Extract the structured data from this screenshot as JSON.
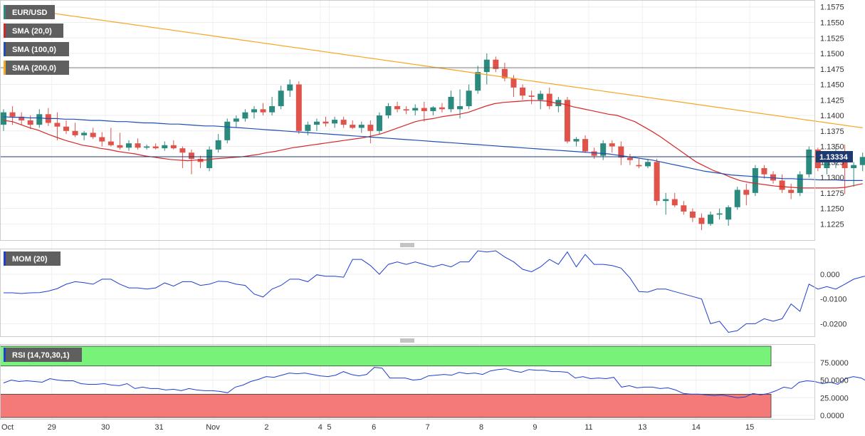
{
  "chart_data": [
    {
      "type": "candlestick",
      "symbol": "EUR/USD",
      "legend": [
        {
          "label": "EUR/USD",
          "color": "#2b8a7e"
        },
        {
          "label": "SMA (20,0)",
          "color": "#d62728"
        },
        {
          "label": "SMA (100,0)",
          "color": "#1f4fb4"
        },
        {
          "label": "SMA (200,0)",
          "color": "#f5a623"
        }
      ],
      "ylim": [
        1.1207,
        1.1577
      ],
      "yticks": [
        "1.1225",
        "1.1250",
        "1.1275",
        "1.1300",
        "1.1325",
        "1.1350",
        "1.1375",
        "1.1400",
        "1.1425",
        "1.1450",
        "1.1475",
        "1.1500",
        "1.1525",
        "1.1550",
        "1.1575"
      ],
      "last_price": "1.13334",
      "horizontal_line": 1.1477,
      "up_color": "#2b8a7e",
      "down_color": "#e0534b",
      "candles": [
        [
          1.1385,
          1.141,
          1.1375,
          1.1405
        ],
        [
          1.1405,
          1.1415,
          1.1385,
          1.1398
        ],
        [
          1.1398,
          1.1405,
          1.1385,
          1.1392
        ],
        [
          1.1392,
          1.14,
          1.1378,
          1.1385
        ],
        [
          1.1385,
          1.141,
          1.138,
          1.1402
        ],
        [
          1.1402,
          1.1412,
          1.1383,
          1.1388
        ],
        [
          1.1388,
          1.1405,
          1.136,
          1.1382
        ],
        [
          1.1382,
          1.1392,
          1.137,
          1.1375
        ],
        [
          1.1375,
          1.1388,
          1.1365,
          1.1368
        ],
        [
          1.1368,
          1.1375,
          1.136,
          1.1372
        ],
        [
          1.1372,
          1.138,
          1.1362,
          1.1365
        ],
        [
          1.1365,
          1.1373,
          1.135,
          1.1358
        ],
        [
          1.1358,
          1.138,
          1.135,
          1.1352
        ],
        [
          1.1352,
          1.1372,
          1.1345,
          1.1348
        ],
        [
          1.1348,
          1.136,
          1.1343,
          1.1355
        ],
        [
          1.1355,
          1.1363,
          1.1345,
          1.1348
        ],
        [
          1.1348,
          1.1353,
          1.1345,
          1.135
        ],
        [
          1.135,
          1.1355,
          1.1345,
          1.1347
        ],
        [
          1.1347,
          1.1358,
          1.1343,
          1.1352
        ],
        [
          1.1352,
          1.136,
          1.1345,
          1.1347
        ],
        [
          1.1347,
          1.135,
          1.1315,
          1.134
        ],
        [
          1.134,
          1.1345,
          1.1305,
          1.133
        ],
        [
          1.133,
          1.1335,
          1.1315,
          1.1325
        ],
        [
          1.1315,
          1.135,
          1.131,
          1.1345
        ],
        [
          1.1345,
          1.137,
          1.134,
          1.136
        ],
        [
          1.136,
          1.1395,
          1.1355,
          1.139
        ],
        [
          1.139,
          1.14,
          1.138,
          1.1395
        ],
        [
          1.1395,
          1.141,
          1.139,
          1.1405
        ],
        [
          1.1405,
          1.1415,
          1.1395,
          1.141
        ],
        [
          1.141,
          1.142,
          1.14,
          1.1405
        ],
        [
          1.1405,
          1.143,
          1.14,
          1.1415
        ],
        [
          1.1415,
          1.1448,
          1.141,
          1.144
        ],
        [
          1.144,
          1.1458,
          1.143,
          1.145
        ],
        [
          1.145,
          1.1455,
          1.137,
          1.1375
        ],
        [
          1.1375,
          1.139,
          1.1368,
          1.1385
        ],
        [
          1.1385,
          1.1395,
          1.1375,
          1.139
        ],
        [
          1.139,
          1.1398,
          1.1382,
          1.1387
        ],
        [
          1.1387,
          1.1398,
          1.138,
          1.1393
        ],
        [
          1.1393,
          1.1398,
          1.138,
          1.1385
        ],
        [
          1.1385,
          1.1392,
          1.1378,
          1.138
        ],
        [
          1.138,
          1.139,
          1.1372,
          1.1385
        ],
        [
          1.1385,
          1.1392,
          1.1355,
          1.1375
        ],
        [
          1.1375,
          1.1405,
          1.137,
          1.14
        ],
        [
          1.14,
          1.142,
          1.1395,
          1.1415
        ],
        [
          1.1415,
          1.1422,
          1.1405,
          1.141
        ],
        [
          1.141,
          1.1415,
          1.1402,
          1.1408
        ],
        [
          1.1408,
          1.1418,
          1.14,
          1.1412
        ],
        [
          1.1412,
          1.1422,
          1.139,
          1.1407
        ],
        [
          1.1407,
          1.1415,
          1.14,
          1.1413
        ],
        [
          1.1413,
          1.142,
          1.1405,
          1.141
        ],
        [
          1.141,
          1.144,
          1.1405,
          1.143
        ],
        [
          1.141,
          1.1442,
          1.1395,
          1.1415
        ],
        [
          1.1415,
          1.145,
          1.141,
          1.144
        ],
        [
          1.144,
          1.148,
          1.1435,
          1.147
        ],
        [
          1.147,
          1.15,
          1.145,
          1.149
        ],
        [
          1.149,
          1.1495,
          1.147,
          1.1475
        ],
        [
          1.1475,
          1.1485,
          1.1455,
          1.146
        ],
        [
          1.146,
          1.1465,
          1.143,
          1.1445
        ],
        [
          1.1445,
          1.145,
          1.1425,
          1.1432
        ],
        [
          1.1432,
          1.144,
          1.1418,
          1.143
        ],
        [
          1.1425,
          1.144,
          1.141,
          1.1435
        ],
        [
          1.1435,
          1.1445,
          1.141,
          1.1415
        ],
        [
          1.1415,
          1.143,
          1.1405,
          1.1425
        ],
        [
          1.1425,
          1.143,
          1.1355,
          1.1358
        ],
        [
          1.1358,
          1.1365,
          1.135,
          1.1362
        ],
        [
          1.1362,
          1.1368,
          1.134,
          1.1342
        ],
        [
          1.1342,
          1.1348,
          1.133,
          1.1335
        ],
        [
          1.1335,
          1.136,
          1.1328,
          1.1355
        ],
        [
          1.1355,
          1.136,
          1.134,
          1.135
        ],
        [
          1.135,
          1.1358,
          1.132,
          1.1332
        ],
        [
          1.1332,
          1.1338,
          1.132,
          1.1328
        ],
        [
          1.132,
          1.133,
          1.1315,
          1.1318
        ],
        [
          1.1318,
          1.133,
          1.1315,
          1.1325
        ],
        [
          1.1325,
          1.133,
          1.1255,
          1.1262
        ],
        [
          1.1262,
          1.1275,
          1.124,
          1.1265
        ],
        [
          1.1265,
          1.1275,
          1.1252,
          1.1255
        ],
        [
          1.1255,
          1.1262,
          1.124,
          1.1245
        ],
        [
          1.1245,
          1.125,
          1.1228,
          1.1235
        ],
        [
          1.1235,
          1.1242,
          1.1215,
          1.1225
        ],
        [
          1.1225,
          1.1245,
          1.1222,
          1.124
        ],
        [
          1.124,
          1.125,
          1.1232,
          1.1242
        ],
        [
          1.1232,
          1.1255,
          1.1222,
          1.1252
        ],
        [
          1.1252,
          1.1285,
          1.1248,
          1.128
        ],
        [
          1.128,
          1.129,
          1.1255,
          1.1272
        ],
        [
          1.1275,
          1.132,
          1.127,
          1.1315
        ],
        [
          1.1315,
          1.132,
          1.1298,
          1.1305
        ],
        [
          1.1305,
          1.131,
          1.129,
          1.1295
        ],
        [
          1.1295,
          1.1305,
          1.1275,
          1.128
        ],
        [
          1.128,
          1.129,
          1.1265,
          1.1275
        ],
        [
          1.1275,
          1.131,
          1.127,
          1.1305
        ],
        [
          1.1305,
          1.135,
          1.13,
          1.1345
        ],
        [
          1.1345,
          1.1348,
          1.131,
          1.1315
        ],
        [
          1.1315,
          1.1335,
          1.1305,
          1.133
        ],
        [
          1.133,
          1.135,
          1.1315,
          1.1335
        ],
        [
          1.1335,
          1.1353,
          1.1273,
          1.1315
        ],
        [
          1.1315,
          1.1325,
          1.1285,
          1.132
        ],
        [
          1.132,
          1.134,
          1.131,
          1.1333
        ]
      ],
      "sma20": [
        1.1392,
        1.139,
        1.1385,
        1.138,
        1.1376,
        1.137,
        1.1365,
        1.136,
        1.1356,
        1.1352,
        1.135,
        1.1347,
        1.1345,
        1.1342,
        1.134,
        1.1338,
        1.1335,
        1.1333,
        1.1331,
        1.1329,
        1.1328,
        1.1327,
        1.1328,
        1.1328,
        1.133,
        1.1331,
        1.1332,
        1.1333,
        1.1335,
        1.1337,
        1.134,
        1.1342,
        1.1345,
        1.1348,
        1.135,
        1.1352,
        1.1354,
        1.1356,
        1.1358,
        1.136,
        1.1362,
        1.1364,
        1.1367,
        1.137,
        1.1375,
        1.138,
        1.1385,
        1.139,
        1.1393,
        1.1395,
        1.1398,
        1.14,
        1.1402,
        1.1405,
        1.141,
        1.1415,
        1.1419,
        1.1421,
        1.1422,
        1.1423,
        1.1424,
        1.1424,
        1.1423,
        1.142,
        1.1418,
        1.1414,
        1.1411,
        1.1408,
        1.1405,
        1.1402,
        1.14,
        1.1395,
        1.139,
        1.1382,
        1.1374,
        1.1365,
        1.1355,
        1.1345,
        1.1335,
        1.1325,
        1.1318,
        1.1311,
        1.1306,
        1.13,
        1.1295,
        1.1292,
        1.129,
        1.1288,
        1.1286,
        1.1285,
        1.1284,
        1.1283,
        1.1283,
        1.1283,
        1.1283,
        1.1283,
        1.1284,
        1.1287,
        1.129
      ],
      "sma100": [
        1.1398,
        1.1397,
        1.1397,
        1.1396,
        1.1396,
        1.1395,
        1.1395,
        1.1394,
        1.1394,
        1.1393,
        1.1392,
        1.1392,
        1.1391,
        1.139,
        1.139,
        1.1389,
        1.1388,
        1.1388,
        1.1387,
        1.1386,
        1.1386,
        1.1385,
        1.1384,
        1.1383,
        1.1383,
        1.1382,
        1.1381,
        1.138,
        1.1379,
        1.1378,
        1.1377,
        1.1376,
        1.1375,
        1.1374,
        1.1373,
        1.1372,
        1.1371,
        1.137,
        1.1369,
        1.1368,
        1.1367,
        1.1366,
        1.1365,
        1.1364,
        1.1363,
        1.1362,
        1.1361,
        1.136,
        1.1359,
        1.1358,
        1.1357,
        1.1356,
        1.1355,
        1.1354,
        1.1353,
        1.1352,
        1.1351,
        1.135,
        1.1349,
        1.1348,
        1.1347,
        1.1346,
        1.1345,
        1.1344,
        1.1343,
        1.1342,
        1.1341,
        1.134,
        1.1339,
        1.1338,
        1.1336,
        1.1334,
        1.1332,
        1.133,
        1.1328,
        1.1325,
        1.1322,
        1.1319,
        1.1316,
        1.1313,
        1.131,
        1.1308,
        1.1306,
        1.1304,
        1.1303,
        1.1302,
        1.1301,
        1.13,
        1.1299,
        1.1298,
        1.1298,
        1.1297,
        1.1297,
        1.1296,
        1.1296,
        1.1296,
        1.1295,
        1.1295,
        1.1295
      ],
      "sma200": [
        1.1576,
        1.1574,
        1.1572,
        1.157,
        1.1568,
        1.1566,
        1.1564,
        1.1562,
        1.156,
        1.1558,
        1.1556,
        1.1554,
        1.1552,
        1.155,
        1.1548,
        1.1546,
        1.1544,
        1.1542,
        1.154,
        1.1538,
        1.1536,
        1.1534,
        1.1532,
        1.153,
        1.1528,
        1.1526,
        1.1524,
        1.1522,
        1.152,
        1.1518,
        1.1516,
        1.1514,
        1.1512,
        1.151,
        1.1508,
        1.1506,
        1.1504,
        1.1502,
        1.15,
        1.1498,
        1.1496,
        1.1494,
        1.1492,
        1.149,
        1.1488,
        1.1486,
        1.1484,
        1.1482,
        1.148,
        1.1478,
        1.1476,
        1.1474,
        1.1472,
        1.147,
        1.1468,
        1.1466,
        1.1464,
        1.1462,
        1.146,
        1.1458,
        1.1456,
        1.1454,
        1.1452,
        1.145,
        1.1448,
        1.1446,
        1.1444,
        1.1442,
        1.144,
        1.1438,
        1.1436,
        1.1434,
        1.1432,
        1.143,
        1.1428,
        1.1426,
        1.1424,
        1.1422,
        1.142,
        1.1418,
        1.1416,
        1.1414,
        1.1412,
        1.141,
        1.1408,
        1.1406,
        1.1404,
        1.1402,
        1.14,
        1.1398,
        1.1396,
        1.1394,
        1.1392,
        1.139,
        1.1388,
        1.1386,
        1.1384,
        1.1382,
        1.138
      ]
    },
    {
      "type": "line",
      "legend": "MOM (20)",
      "color": "#1f3fd1",
      "ylim": [
        -0.0245,
        0.0095
      ],
      "yticks": [
        "0.000",
        "-0.0100",
        "-0.0200"
      ],
      "values": [
        -0.0075,
        -0.0075,
        -0.0078,
        -0.0075,
        -0.0074,
        -0.0068,
        -0.0058,
        -0.004,
        -0.003,
        -0.0034,
        -0.004,
        -0.002,
        -0.002,
        -0.004,
        -0.0055,
        -0.0055,
        -0.006,
        -0.0055,
        -0.0035,
        -0.0048,
        -0.003,
        -0.003,
        -0.0045,
        -0.004,
        -0.0028,
        -0.003,
        -0.004,
        -0.0045,
        -0.008,
        -0.0092,
        -0.006,
        -0.0045,
        -0.002,
        -0.002,
        -0.003,
        -0.0002,
        -0.0008,
        -0.0008,
        -0.0012,
        0.006,
        0.006,
        0.0035,
        0.0,
        0.004,
        0.005,
        0.004,
        0.005,
        0.004,
        0.003,
        0.004,
        0.003,
        0.005,
        0.005,
        0.0095,
        0.009,
        0.0095,
        0.007,
        0.005,
        0.002,
        0.001,
        0.003,
        0.006,
        0.004,
        0.009,
        0.003,
        0.008,
        0.004,
        0.004,
        0.0035,
        0.0025,
        -0.0015,
        -0.007,
        -0.0072,
        -0.006,
        -0.006,
        -0.007,
        -0.008,
        -0.009,
        -0.01,
        -0.02,
        -0.019,
        -0.0235,
        -0.0228,
        -0.02,
        -0.02,
        -0.018,
        -0.019,
        -0.018,
        -0.012,
        -0.015,
        -0.004,
        -0.006,
        -0.005,
        -0.006,
        -0.004,
        -0.002,
        -0.001,
        -0.0003,
        0.001,
        0.0,
        0.006,
        0.008
      ],
      "last_x_index": 101
    },
    {
      "type": "line",
      "legend": "RSI (14,70,30,1)",
      "color": "#1f3fd1",
      "ylim": [
        -3,
        98
      ],
      "yticks": [
        "75.0000",
        "50.0000",
        "25.0000",
        "0.0000"
      ],
      "overbought": 70,
      "oversold": 30,
      "overbought_color": "#79f279",
      "oversold_color": "#f47a7a",
      "values": [
        46,
        50,
        48,
        49,
        48,
        47,
        52,
        50,
        49,
        49,
        45,
        44,
        44,
        45,
        43,
        42,
        45,
        38,
        40,
        38,
        38,
        36,
        37,
        35,
        38,
        36,
        35,
        35,
        34,
        32,
        40,
        43,
        48,
        51,
        55,
        54,
        57,
        60,
        59,
        60,
        58,
        56,
        55,
        57,
        62,
        58,
        56,
        58,
        68,
        67,
        53,
        53,
        53,
        50,
        51,
        56,
        57,
        58,
        57,
        61,
        59,
        60,
        58,
        63,
        65,
        66,
        63,
        61,
        65,
        64,
        64,
        62,
        62,
        61,
        53,
        55,
        52,
        53,
        52,
        54,
        40,
        42,
        39,
        40,
        40,
        38,
        39,
        36,
        31,
        30,
        30,
        29,
        28,
        29,
        27,
        25,
        26,
        31,
        29,
        31,
        35,
        40,
        38,
        47,
        49,
        48,
        45,
        47,
        44,
        52,
        55,
        53,
        47,
        53,
        53,
        52,
        53,
        50
      ],
      "last_x_index": 101
    }
  ],
  "x_ticks": [
    "Oct",
    "29",
    "30",
    "31",
    "Nov",
    "2",
    "4",
    "5",
    "6",
    "7",
    "8",
    "9",
    "11",
    "13",
    "14",
    "15"
  ]
}
